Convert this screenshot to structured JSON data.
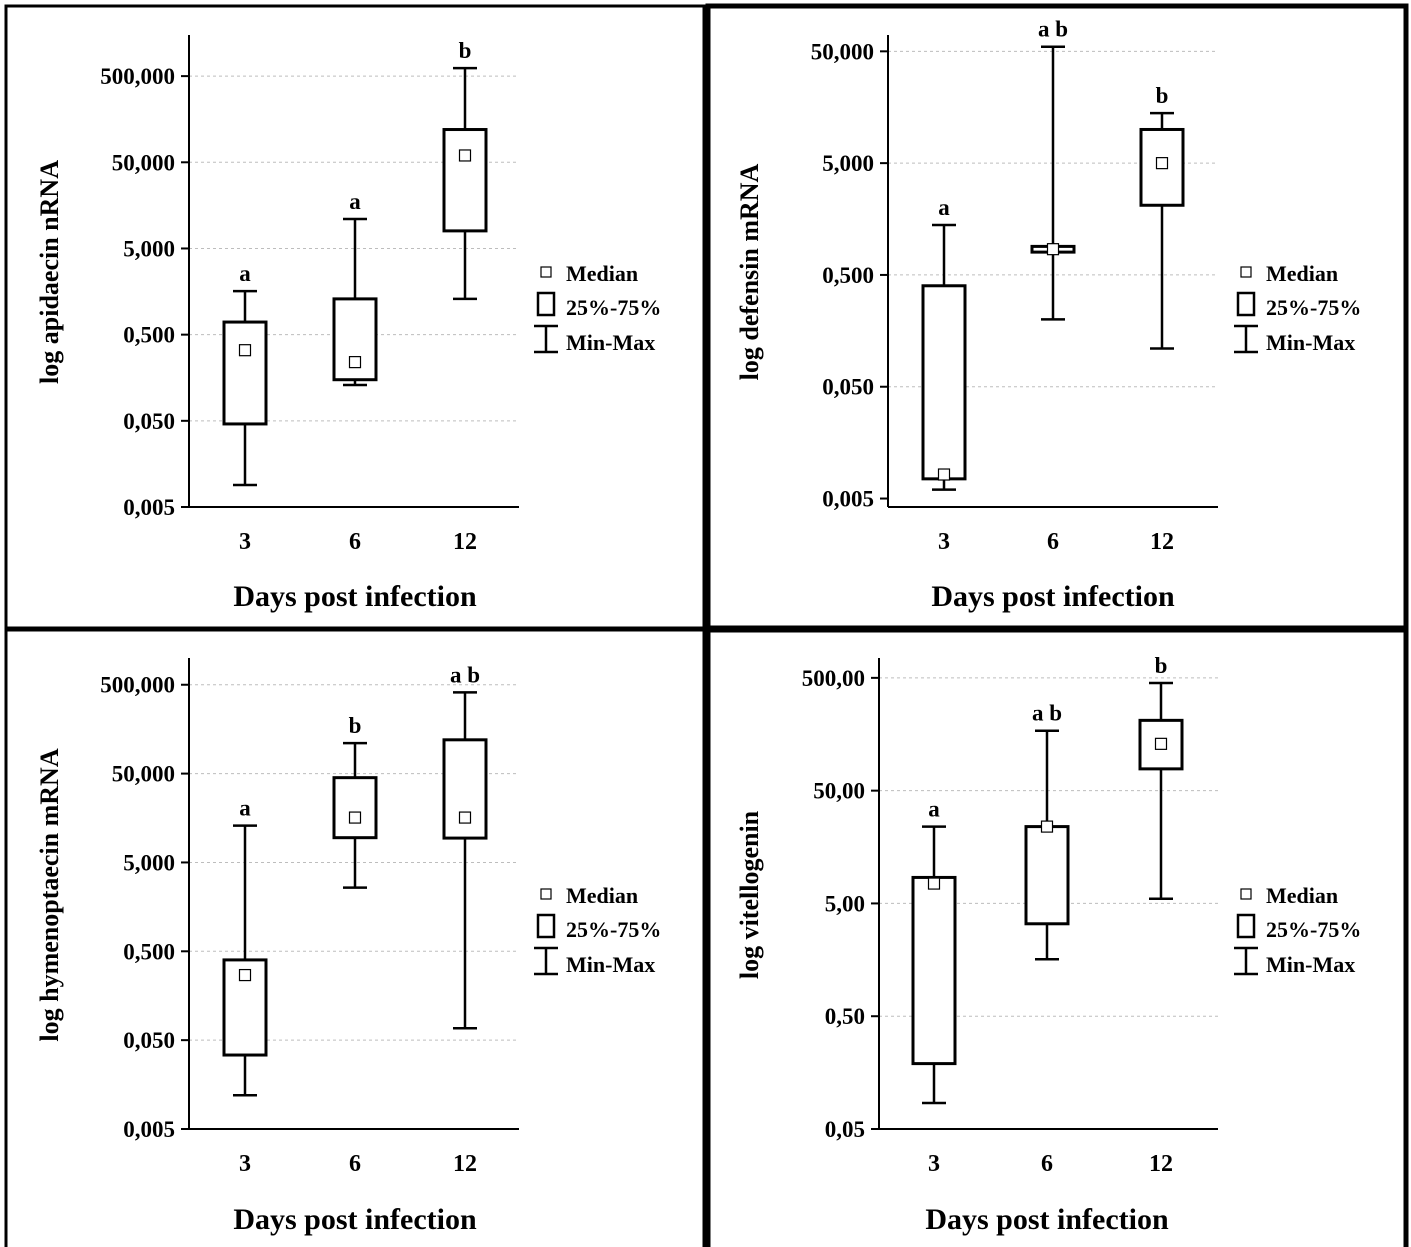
{
  "chart_data": [
    {
      "type": "box",
      "ylabel": "log apidaecin nRNA",
      "xlabel": "Days post infection",
      "y_scale": "log",
      "y_ticks": [
        0.005,
        0.05,
        0.5,
        5,
        50,
        500
      ],
      "y_tick_labels": [
        "0,005",
        "0,050",
        "0,500",
        "5,000",
        "50,000",
        "500,000"
      ],
      "ylim": [
        0.005,
        1500
      ],
      "categories": [
        "3",
        "6",
        "12"
      ],
      "boxes": [
        {
          "min": 0.009,
          "q1": 0.046,
          "median": 0.33,
          "q3": 0.7,
          "max": 1.6,
          "letter": "a"
        },
        {
          "min": 0.13,
          "q1": 0.15,
          "median": 0.24,
          "q3": 1.3,
          "max": 11,
          "letter": "a"
        },
        {
          "min": 1.3,
          "q1": 8,
          "median": 60,
          "q3": 120,
          "max": 620,
          "letter": "b"
        }
      ],
      "legend": {
        "median": "Median",
        "box": "25%-75%",
        "whisker": "Min-Max"
      }
    },
    {
      "type": "box",
      "ylabel": "log defensin mRNA",
      "xlabel": "Days post infection",
      "y_scale": "log",
      "y_ticks": [
        0.005,
        0.05,
        0.5,
        5,
        50
      ],
      "y_tick_labels": [
        "0,005",
        "0,050",
        "0,500",
        "5,000",
        "50,000"
      ],
      "ylim": [
        0.0042,
        70
      ],
      "categories": [
        "3",
        "6",
        "12"
      ],
      "boxes": [
        {
          "min": 0.006,
          "q1": 0.0075,
          "median": 0.0082,
          "q3": 0.4,
          "max": 1.4,
          "letter": "a"
        },
        {
          "min": 0.2,
          "q1": 0.8,
          "median": 0.85,
          "q3": 0.9,
          "max": 55,
          "letter": "a b"
        },
        {
          "min": 0.11,
          "q1": 2.1,
          "median": 5,
          "q3": 10,
          "max": 14,
          "letter": "b"
        }
      ],
      "legend": {
        "median": "Median",
        "box": "25%-75%",
        "whisker": "Min-Max"
      }
    },
    {
      "type": "box",
      "ylabel": "log hymenoptaecin mRNA",
      "xlabel": "Days post infection",
      "y_scale": "log",
      "y_ticks": [
        0.005,
        0.05,
        0.5,
        5,
        50,
        500
      ],
      "y_tick_labels": [
        "0,005",
        "0,050",
        "0,500",
        "5,000",
        "50,000",
        "500,000"
      ],
      "ylim": [
        0.005,
        1000
      ],
      "categories": [
        "3",
        "6",
        "12"
      ],
      "boxes": [
        {
          "min": 0.012,
          "q1": 0.034,
          "median": 0.27,
          "q3": 0.4,
          "max": 13,
          "letter": "a"
        },
        {
          "min": 2.6,
          "q1": 9.5,
          "median": 16,
          "q3": 45,
          "max": 110,
          "letter": "b"
        },
        {
          "min": 0.068,
          "q1": 9.4,
          "median": 16,
          "q3": 120,
          "max": 410,
          "letter": "a b"
        }
      ],
      "legend": {
        "median": "Median",
        "box": "25%-75%",
        "whisker": "Min-Max"
      }
    },
    {
      "type": "box",
      "ylabel": "log vitellogenin",
      "xlabel": "Days post infection",
      "y_scale": "log",
      "y_ticks": [
        0.05,
        0.5,
        5,
        50,
        500
      ],
      "y_tick_labels": [
        "0,05",
        "0,50",
        "5,00",
        "50,00",
        "500,00"
      ],
      "ylim": [
        0.05,
        750
      ],
      "categories": [
        "3",
        "6",
        "12"
      ],
      "boxes": [
        {
          "min": 0.085,
          "q1": 0.19,
          "median": 7.5,
          "q3": 8.5,
          "max": 24,
          "letter": "a"
        },
        {
          "min": 1.6,
          "q1": 3.3,
          "median": 24,
          "q3": 24,
          "max": 170,
          "letter": "a b"
        },
        {
          "min": 5.5,
          "q1": 78,
          "median": 130,
          "q3": 210,
          "max": 450,
          "letter": "b"
        }
      ],
      "legend": {
        "median": "Median",
        "box": "25%-75%",
        "whisker": "Min-Max"
      }
    }
  ]
}
